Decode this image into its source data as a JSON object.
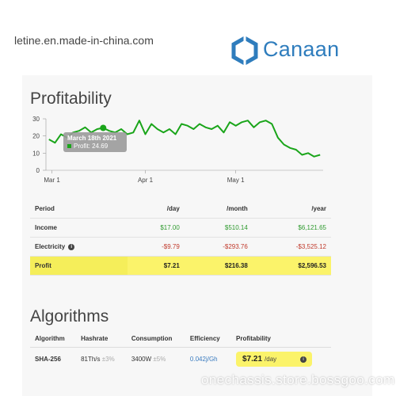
{
  "header": {
    "site_url": "letine.en.made-in-china.com",
    "brand_name": "Canaan",
    "brand_color": "#2f7dbd"
  },
  "profitability": {
    "title": "Profitability",
    "tooltip": {
      "date": "March 18th 2021",
      "label": "Profit: 24.69"
    }
  },
  "chart_data": {
    "type": "line",
    "ylim": [
      0,
      30
    ],
    "y_ticks": [
      "0",
      "10",
      "20",
      "30"
    ],
    "x_ticks": [
      "Mar 1",
      "Apr 1",
      "May 1"
    ],
    "series": [
      {
        "color": "#1aa51a",
        "x": [
          "2021-02-28",
          "2021-03-02",
          "2021-03-04",
          "2021-03-06",
          "2021-03-08",
          "2021-03-10",
          "2021-03-12",
          "2021-03-14",
          "2021-03-16",
          "2021-03-18",
          "2021-03-20",
          "2021-03-22",
          "2021-03-24",
          "2021-03-26",
          "2021-03-28",
          "2021-03-30",
          "2021-04-01",
          "2021-04-03",
          "2021-04-05",
          "2021-04-07",
          "2021-04-09",
          "2021-04-11",
          "2021-04-13",
          "2021-04-15",
          "2021-04-17",
          "2021-04-19",
          "2021-04-21",
          "2021-04-23",
          "2021-04-25",
          "2021-04-27",
          "2021-04-29",
          "2021-05-01",
          "2021-05-03",
          "2021-05-05",
          "2021-05-07",
          "2021-05-09",
          "2021-05-11",
          "2021-05-13",
          "2021-05-15",
          "2021-05-17",
          "2021-05-19",
          "2021-05-21",
          "2021-05-23",
          "2021-05-25",
          "2021-05-27",
          "2021-05-29"
        ],
        "y": [
          18,
          16,
          21,
          19,
          22,
          23,
          25,
          22,
          24,
          24.69,
          23,
          22,
          24,
          21,
          22,
          29,
          21,
          27,
          24,
          22,
          24,
          21,
          27,
          26,
          24,
          27,
          25,
          24,
          26,
          22,
          28,
          26,
          28,
          29,
          25,
          28,
          29,
          27,
          19,
          15,
          13,
          12,
          9,
          10,
          8,
          9
        ]
      }
    ],
    "tooltip_point": {
      "x": "2021-03-18",
      "y": 24.69
    }
  },
  "profit_table": {
    "headers": [
      "Period",
      "/day",
      "/month",
      "/year"
    ],
    "rows": [
      {
        "label": "Income",
        "day": "$17.00",
        "month": "$510.14",
        "year": "$6,121.65",
        "tone": "green"
      },
      {
        "label": "Electricity",
        "day": "-$9.79",
        "month": "-$293.76",
        "year": "-$3,525.12",
        "tone": "red"
      },
      {
        "label": "Profit",
        "day": "$7.21",
        "month": "$216.38",
        "year": "$2,596.53",
        "tone": "profit"
      }
    ],
    "info_glyph": "i"
  },
  "algorithms": {
    "title": "Algorithms",
    "headers": [
      "Algorithm",
      "Hashrate",
      "Consumption",
      "Efficiency",
      "Profitability"
    ],
    "row": {
      "algorithm": "SHA-256",
      "hashrate": "81Th/s",
      "hashrate_tol": "±3%",
      "consumption": "3400W",
      "consumption_tol": "±5%",
      "efficiency": "0.042j/Gh",
      "profit_value": "$7.21",
      "profit_unit": "/day",
      "info_glyph": "i"
    }
  },
  "watermark": "onechassis.store.bossgoo.com"
}
